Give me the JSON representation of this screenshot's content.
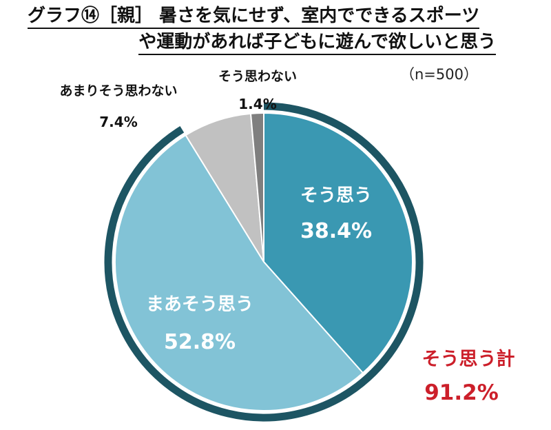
{
  "title": {
    "line1": "グラフ⑭［親］ 暑さを気にせず、室内でできるスポーツ",
    "line2": "や運動があれば子どもに遊んで欲しいと思う"
  },
  "sample_size": "（n=500）",
  "chart_data": {
    "type": "pie",
    "title": "グラフ⑭［親］ 暑さを気にせず、室内でできるスポーツや運動があれば子どもに遊んで欲しいと思う",
    "slices": [
      {
        "label": "そう思う",
        "value": 38.4,
        "value_label": "38.4%",
        "color": "#3a98b2"
      },
      {
        "label": "まあそう思う",
        "value": 52.8,
        "value_label": "52.8%",
        "color": "#82c3d6"
      },
      {
        "label": "あまりそう思わない",
        "value": 7.4,
        "value_label": "7.4%",
        "color": "#c1c1c1"
      },
      {
        "label": "そう思わない",
        "value": 1.4,
        "value_label": "1.4%",
        "color": "#7f7f7f"
      }
    ],
    "total_annotation": {
      "label": "そう思う計",
      "value_label": "91.2%",
      "value": 91.2,
      "color": "#cc1f2a"
    },
    "ring_color": "#1d5563"
  }
}
